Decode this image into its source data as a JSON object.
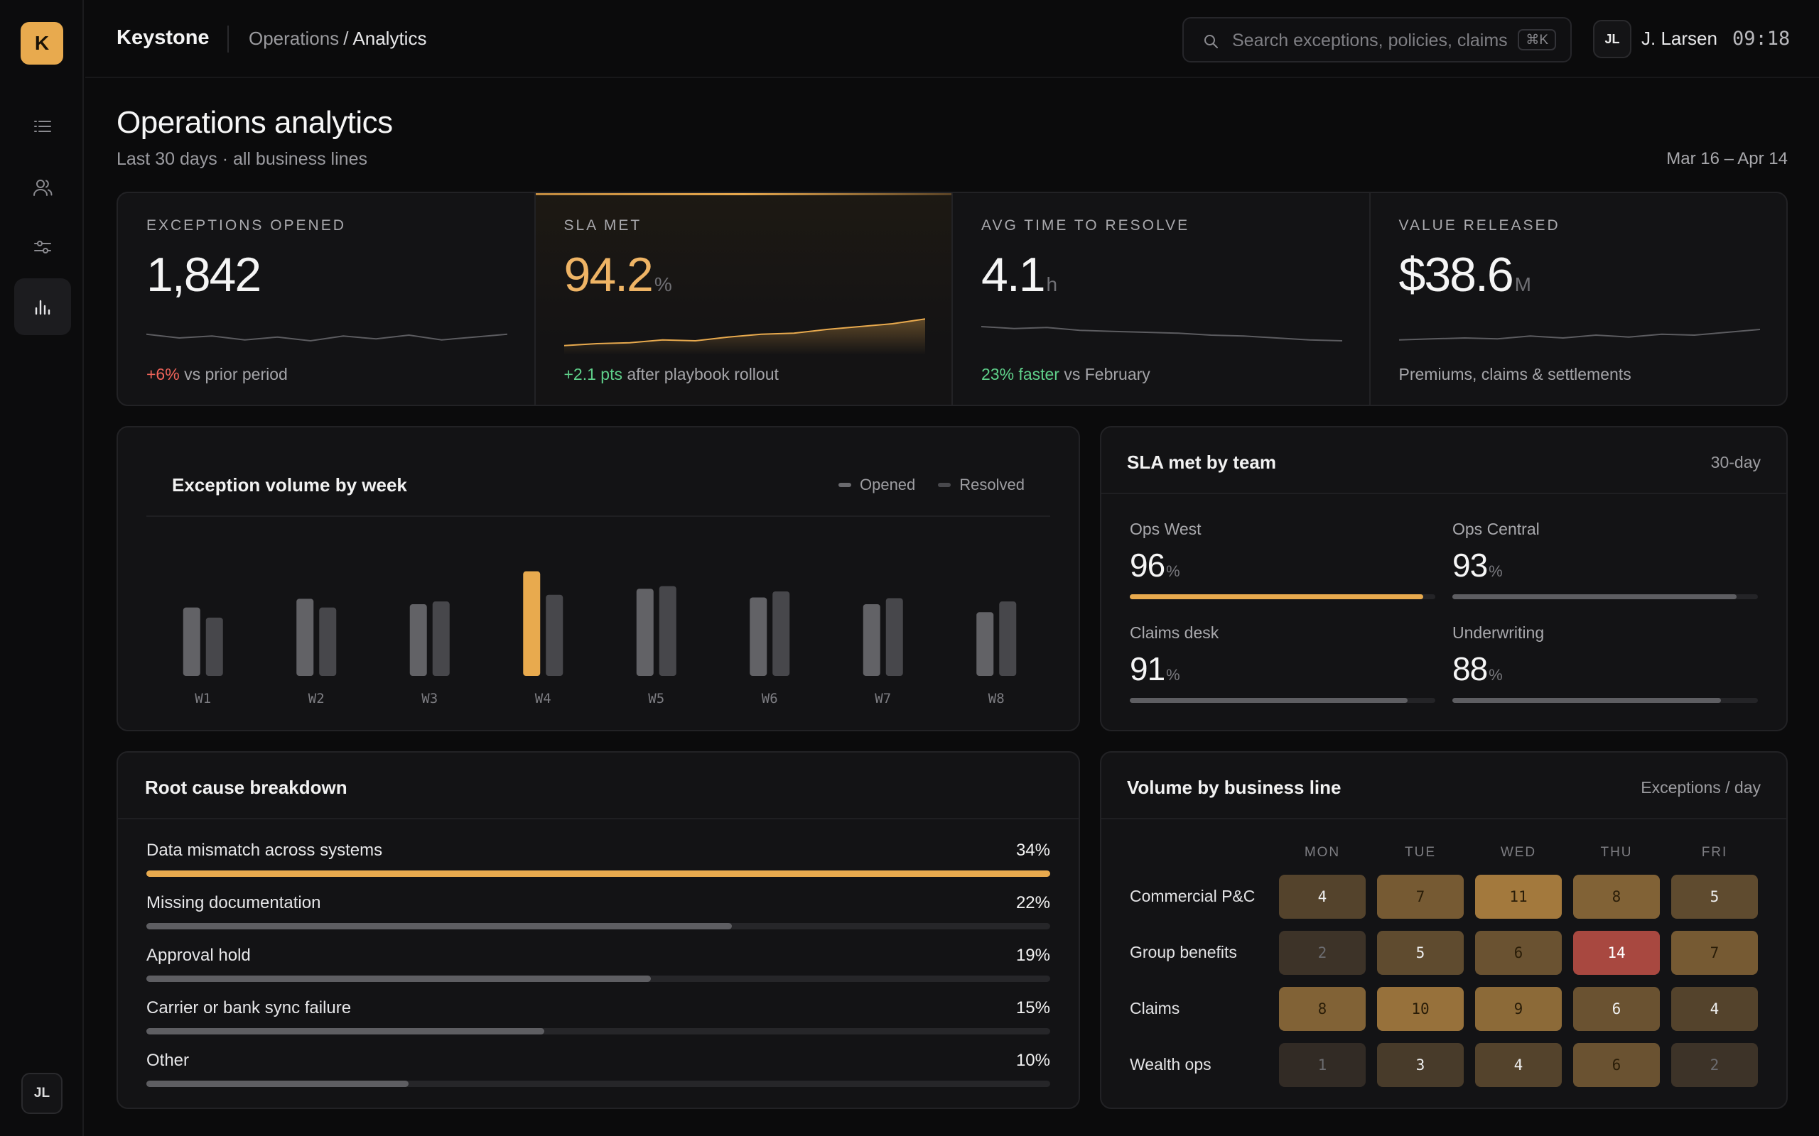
{
  "sidebar": {
    "logo_letter": "K",
    "avatar_initials": "JL",
    "nav": [
      {
        "icon": "list-icon",
        "active": false
      },
      {
        "icon": "users-icon",
        "active": false
      },
      {
        "icon": "sliders-icon",
        "active": false
      },
      {
        "icon": "bar-chart-icon",
        "active": true
      }
    ]
  },
  "topbar": {
    "brand": "Keystone",
    "breadcrumb_parent": "Operations",
    "breadcrumb_sep": "/",
    "breadcrumb_current": "Analytics",
    "search_placeholder": "Search exceptions, policies, claims",
    "search_shortcut": "⌘K",
    "user_initials": "JL",
    "user_name": "J. Larsen",
    "time": "09:18"
  },
  "page": {
    "title": "Operations analytics",
    "subtitle": "Last 30 days · all business lines",
    "date_range": "Mar 16 – Apr 14"
  },
  "kpis": [
    {
      "label": "EXCEPTIONS OPENED",
      "value": "1,842",
      "unit": "",
      "delta": "+6%",
      "delta_tone": "negative",
      "note": " vs prior period",
      "highlight": false,
      "trend": [
        52,
        48,
        50,
        46,
        49,
        45,
        50,
        47,
        51,
        46,
        49,
        52
      ]
    },
    {
      "label": "SLA MET",
      "value": "94.2",
      "unit": "%",
      "delta": "+2.1 pts",
      "delta_tone": "positive",
      "note": " after playbook rollout",
      "highlight": true,
      "trend": [
        40,
        42,
        43,
        46,
        45,
        49,
        52,
        53,
        57,
        60,
        63,
        68
      ]
    },
    {
      "label": "AVG TIME TO RESOLVE",
      "value": "4.1",
      "unit": "h",
      "delta": "23% faster",
      "delta_tone": "positive",
      "note": " vs February",
      "highlight": false,
      "trend": [
        60,
        58,
        59,
        56,
        55,
        54,
        53,
        51,
        50,
        48,
        46,
        45
      ]
    },
    {
      "label": "VALUE RELEASED",
      "value": "$38.6",
      "unit": "M",
      "delta": "",
      "delta_tone": "neutral",
      "note": "Premiums, claims & settlements",
      "highlight": false,
      "trend": [
        46,
        47,
        48,
        47,
        50,
        48,
        51,
        49,
        52,
        51,
        54,
        57
      ]
    }
  ],
  "weekly": {
    "title": "Exception volume by week",
    "legend_opened": "Opened",
    "legend_resolved": "Resolved",
    "highlight_week": "W4",
    "chart_data": {
      "type": "bar",
      "categories": [
        "W1",
        "W2",
        "W3",
        "W4",
        "W5",
        "W6",
        "W7",
        "W8"
      ],
      "series": [
        {
          "name": "Opened",
          "values": [
            102,
            115,
            107,
            156,
            130,
            117,
            107,
            95
          ]
        },
        {
          "name": "Resolved",
          "values": [
            87,
            102,
            111,
            121,
            134,
            126,
            116,
            111
          ]
        }
      ],
      "ylim": [
        0,
        180
      ]
    }
  },
  "sla": {
    "title": "SLA met by team",
    "meta": "30-day",
    "teams": [
      {
        "name": "Ops West",
        "value": "96",
        "unit": "%",
        "fraction": 0.96,
        "highlight": true
      },
      {
        "name": "Ops Central",
        "value": "93",
        "unit": "%",
        "fraction": 0.93,
        "highlight": false
      },
      {
        "name": "Claims desk",
        "value": "91",
        "unit": "%",
        "fraction": 0.91,
        "highlight": false
      },
      {
        "name": "Underwriting",
        "value": "88",
        "unit": "%",
        "fraction": 0.88,
        "highlight": false
      }
    ]
  },
  "root_cause": {
    "title": "Root cause breakdown",
    "items": [
      {
        "label": "Data mismatch across systems",
        "pct": "34%",
        "fraction": 1.0,
        "highlight": true
      },
      {
        "label": "Missing documentation",
        "pct": "22%",
        "fraction": 0.648,
        "highlight": false
      },
      {
        "label": "Approval hold",
        "pct": "19%",
        "fraction": 0.558,
        "highlight": false
      },
      {
        "label": "Carrier or bank sync failure",
        "pct": "15%",
        "fraction": 0.44,
        "highlight": false
      },
      {
        "label": "Other",
        "pct": "10%",
        "fraction": 0.29,
        "highlight": false
      }
    ]
  },
  "heatmap": {
    "title": "Volume by business line",
    "meta": "Exceptions / day",
    "days": [
      "MON",
      "TUE",
      "WED",
      "THU",
      "FRI"
    ],
    "rows": [
      {
        "label": "Commercial P&C",
        "values": [
          4,
          7,
          11,
          8,
          5
        ]
      },
      {
        "label": "Group benefits",
        "values": [
          2,
          5,
          6,
          14,
          7
        ]
      },
      {
        "label": "Claims",
        "values": [
          8,
          10,
          9,
          6,
          4
        ]
      },
      {
        "label": "Wealth ops",
        "values": [
          1,
          3,
          4,
          6,
          2
        ]
      }
    ],
    "alert_color": "#a84840",
    "accent": "#e8aa4e"
  }
}
